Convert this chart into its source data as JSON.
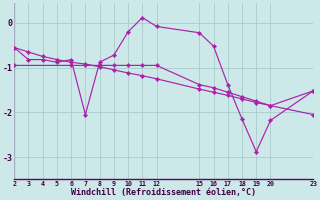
{
  "background_color": "#cce8e8",
  "grid_color": "#aacccc",
  "line_color": "#aa22aa",
  "title": "Windchill (Refroidissement éolien,°C)",
  "xlim": [
    2,
    23
  ],
  "ylim": [
    -3.5,
    0.45
  ],
  "yticks": [
    0,
    -1,
    -2,
    -3
  ],
  "xticks": [
    2,
    3,
    4,
    5,
    6,
    7,
    8,
    9,
    10,
    11,
    12,
    15,
    16,
    17,
    18,
    19,
    20,
    23
  ],
  "line1_x": [
    2,
    3,
    4,
    5,
    6,
    7,
    8,
    9,
    10,
    11,
    12,
    15,
    16,
    17,
    18,
    19,
    20,
    23
  ],
  "line1_y": [
    -0.55,
    -0.82,
    -0.82,
    -0.88,
    -0.82,
    -2.05,
    -0.88,
    -0.72,
    -0.2,
    0.12,
    -0.08,
    -0.22,
    -0.52,
    -1.38,
    -2.15,
    -2.88,
    -2.18,
    -1.52
  ],
  "line2_x": [
    2,
    3,
    4,
    5,
    6,
    7,
    8,
    9,
    10,
    11,
    12,
    15,
    16,
    17,
    18,
    19,
    20,
    23
  ],
  "line2_y": [
    -0.55,
    -0.65,
    -0.75,
    -0.82,
    -0.88,
    -0.92,
    -0.98,
    -1.05,
    -1.12,
    -1.18,
    -1.25,
    -1.48,
    -1.55,
    -1.62,
    -1.7,
    -1.78,
    -1.85,
    -2.05
  ],
  "line3_x": [
    2,
    6,
    7,
    8,
    9,
    10,
    11,
    12,
    15,
    16,
    17,
    18,
    19,
    20,
    23
  ],
  "line3_y": [
    -0.95,
    -0.95,
    -0.95,
    -0.95,
    -0.95,
    -0.95,
    -0.95,
    -0.95,
    -1.38,
    -1.45,
    -1.55,
    -1.65,
    -1.75,
    -1.85,
    -1.52
  ]
}
